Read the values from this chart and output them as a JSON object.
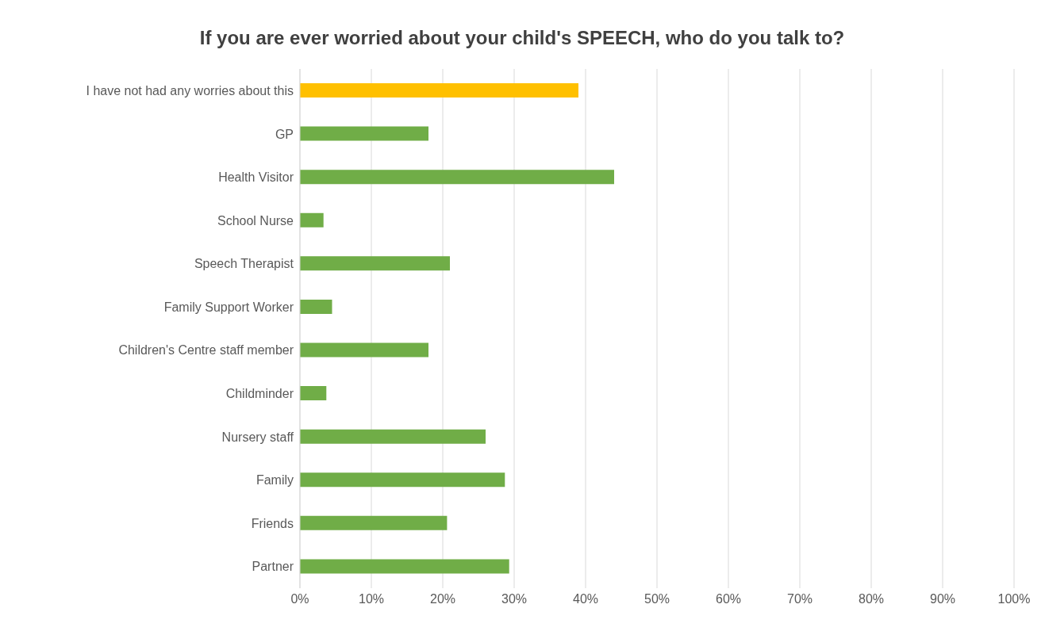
{
  "chart_data": {
    "type": "bar",
    "orientation": "horizontal",
    "title": "If you are ever worried about your child's SPEECH, who do you talk to?",
    "categories": [
      "I have not had any worries about this",
      "GP",
      "Health Visitor",
      "School Nurse",
      "Speech Therapist",
      "Family Support Worker",
      "Children's Centre staff member",
      "Childminder",
      "Nursery staff",
      "Family",
      "Friends",
      "Partner"
    ],
    "values": [
      39,
      18,
      44,
      3.3,
      21,
      4.5,
      18,
      3.7,
      26,
      28.7,
      20.6,
      29.3
    ],
    "colors": [
      "#ffc000",
      "#70ad47",
      "#70ad47",
      "#70ad47",
      "#70ad47",
      "#70ad47",
      "#70ad47",
      "#70ad47",
      "#70ad47",
      "#70ad47",
      "#70ad47",
      "#70ad47"
    ],
    "xlim": [
      0,
      100
    ],
    "xticks": [
      {
        "value": 0,
        "label": "0%"
      },
      {
        "value": 10,
        "label": "10%"
      },
      {
        "value": 20,
        "label": "20%"
      },
      {
        "value": 30,
        "label": "30%"
      },
      {
        "value": 40,
        "label": "40%"
      },
      {
        "value": 50,
        "label": "50%"
      },
      {
        "value": 60,
        "label": "60%"
      },
      {
        "value": 70,
        "label": "70%"
      },
      {
        "value": 80,
        "label": "80%"
      },
      {
        "value": 90,
        "label": "90%"
      },
      {
        "value": 100,
        "label": "100%"
      }
    ],
    "grid": "x",
    "legend": false
  }
}
